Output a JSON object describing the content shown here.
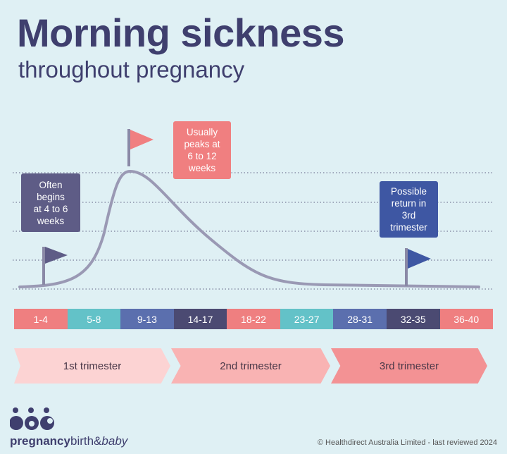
{
  "title": "Morning sickness",
  "subtitle": "throughout pregnancy",
  "callouts": {
    "begins": "Often\nbegins\nat 4 to 6\nweeks",
    "peaks": "Usually\npeaks at\n6 to 12\nweeks",
    "return": "Possible\nreturn in\n3rd\ntrimester"
  },
  "weeks": [
    {
      "label": "1-4",
      "color": "#ef7f80"
    },
    {
      "label": "5-8",
      "color": "#63c2c8"
    },
    {
      "label": "9-13",
      "color": "#5b6fae"
    },
    {
      "label": "14-17",
      "color": "#4b4a72"
    },
    {
      "label": "18-22",
      "color": "#ef7f80"
    },
    {
      "label": "23-27",
      "color": "#63c2c8"
    },
    {
      "label": "28-31",
      "color": "#5b6fae"
    },
    {
      "label": "32-35",
      "color": "#4b4a72"
    },
    {
      "label": "36-40",
      "color": "#ef7f80"
    }
  ],
  "trimesters": [
    {
      "label": "1st trimester",
      "color": "#fcd3d3"
    },
    {
      "label": "2nd trimester",
      "color": "#f9b3b3"
    },
    {
      "label": "3rd trimester",
      "color": "#f39294"
    }
  ],
  "logo": {
    "bold": "pregnancy",
    "regular": "birth&",
    "italic": "baby"
  },
  "copyright": "© Healthdirect Australia Limited - last reviewed 2024",
  "colors": {
    "title": "#3f3f6e",
    "background": "#dff0f4",
    "curve": "#9a99b4",
    "begins": "#5e5c86",
    "peaks": "#f07f80",
    "return": "#3e57a3"
  }
}
